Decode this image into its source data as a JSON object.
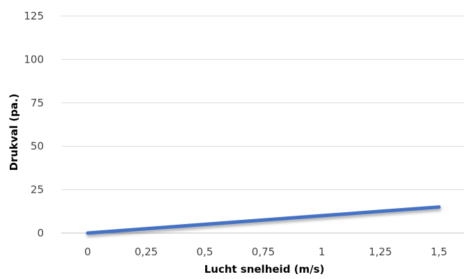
{
  "chart_data": {
    "type": "line",
    "title": "",
    "xlabel": "Lucht snelheid (m/s)",
    "ylabel": "Drukval (pa.)",
    "x": [
      0,
      0.25,
      0.5,
      0.75,
      1,
      1.25,
      1.5
    ],
    "x_tick_labels": [
      "0",
      "0,25",
      "0,5",
      "0,75",
      "1",
      "1,25",
      "1,5"
    ],
    "y_ticks": [
      0,
      25,
      50,
      75,
      100,
      125
    ],
    "y_tick_labels": [
      "0",
      "25",
      "50",
      "75",
      "100",
      "125"
    ],
    "ylim": [
      0,
      125
    ],
    "grid": true,
    "series": [
      {
        "values": [
          0,
          2.5,
          5,
          7.5,
          10,
          12.5,
          15
        ],
        "color": "#4472C4"
      }
    ]
  }
}
